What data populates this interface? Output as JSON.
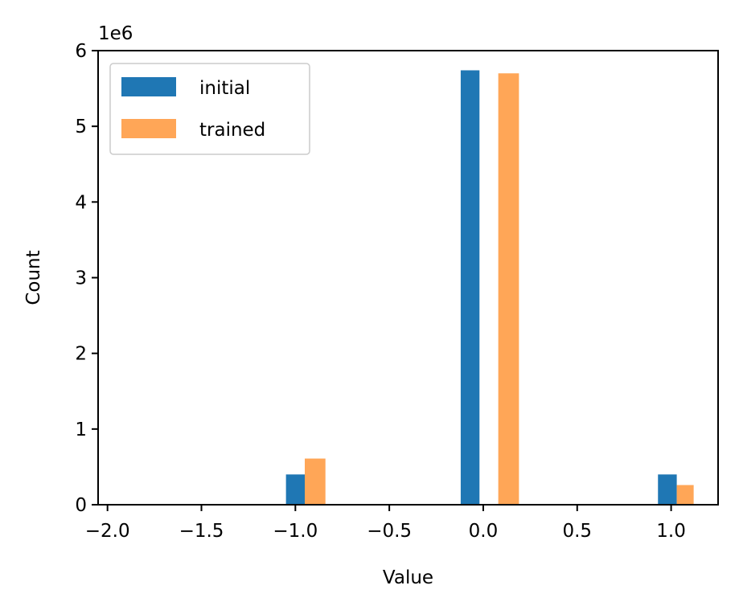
{
  "chart_data": {
    "type": "bar",
    "xlabel": "Value",
    "ylabel": "Count",
    "y_scale_label": "1e6",
    "xlim": [
      -2.05,
      1.25
    ],
    "ylim": [
      0,
      6000000
    ],
    "xticks": [
      -2.0,
      -1.5,
      -1.0,
      -0.5,
      0.0,
      0.5,
      1.0
    ],
    "xtick_labels": [
      "−2.0",
      "−1.5",
      "−1.0",
      "−0.5",
      "0.0",
      "0.5",
      "1.0"
    ],
    "yticks": [
      0,
      1000000,
      2000000,
      3000000,
      4000000,
      5000000,
      6000000
    ],
    "ytick_labels": [
      "0",
      "1",
      "2",
      "3",
      "4",
      "5",
      "6"
    ],
    "grid": false,
    "legend_position": "top-left",
    "series": [
      {
        "name": "initial",
        "color": "#1f77b4",
        "bars": [
          {
            "x_start": -1.05,
            "x_end": -0.95,
            "value": 400000
          },
          {
            "x_start": -0.12,
            "x_end": -0.02,
            "value": 5740000
          },
          {
            "x_start": 0.93,
            "x_end": 1.03,
            "value": 400000
          }
        ]
      },
      {
        "name": "trained",
        "color": "#ffa657",
        "bars": [
          {
            "x_start": -0.95,
            "x_end": -0.84,
            "value": 610000
          },
          {
            "x_start": 0.08,
            "x_end": 0.19,
            "value": 5700000
          },
          {
            "x_start": 1.03,
            "x_end": 1.12,
            "value": 260000
          }
        ]
      }
    ]
  }
}
